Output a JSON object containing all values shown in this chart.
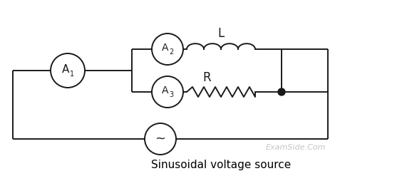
{
  "bg_color": "#ffffff",
  "line_color": "#1a1a1a",
  "text_color": "#000000",
  "watermark_color": "#bbbbbb",
  "watermark_text": "ExamSide.Com",
  "caption": "Sinusoidal voltage source",
  "label_L": "L",
  "label_R": "R",
  "label_A1": "A",
  "label_A1_sub": "1",
  "label_A2": "A",
  "label_A2_sub": "2",
  "label_A3": "A",
  "label_A3_sub": "3",
  "label_tilde": "~"
}
